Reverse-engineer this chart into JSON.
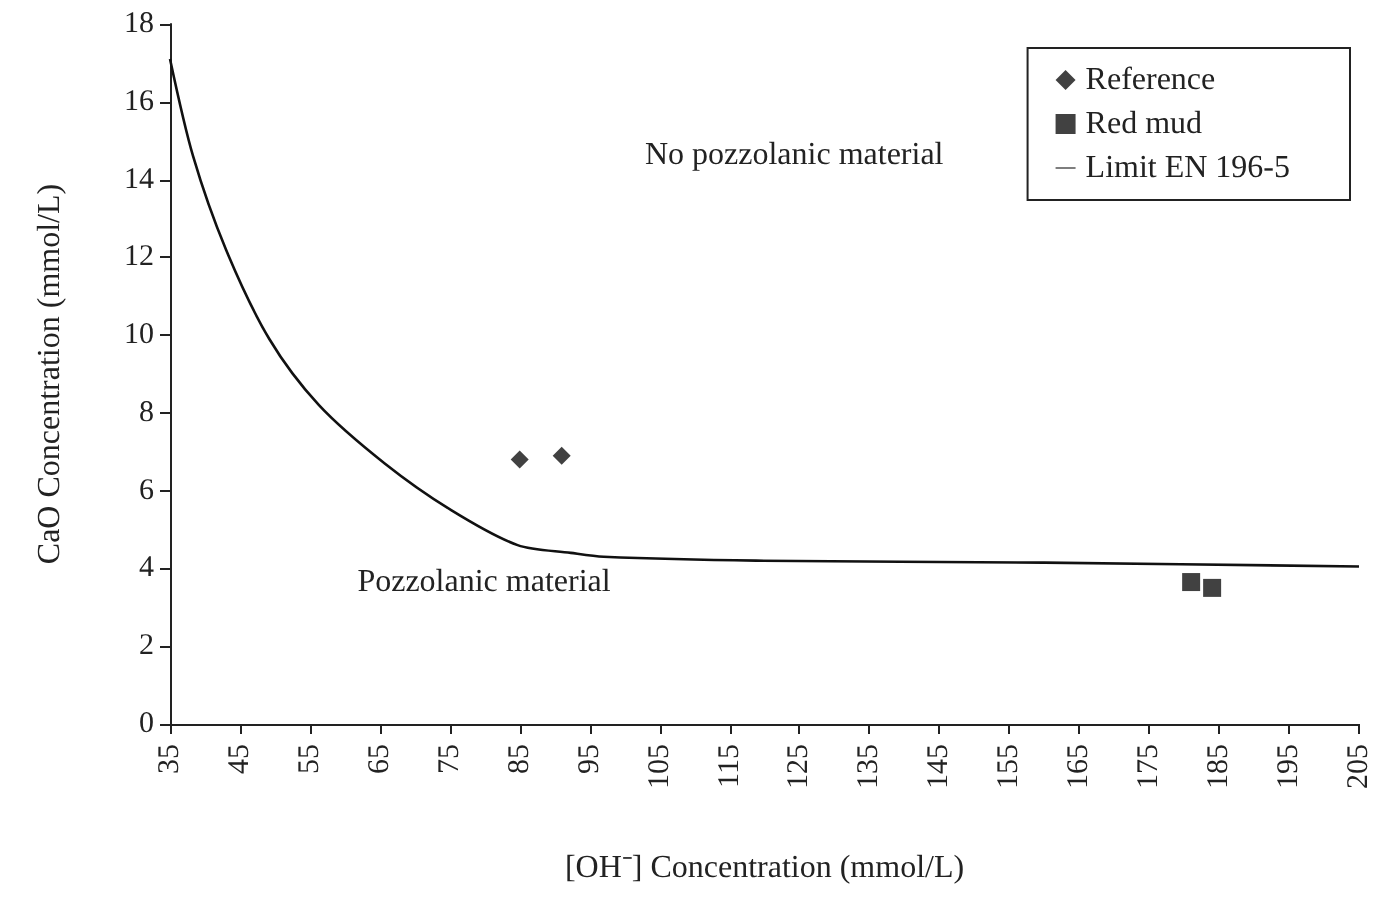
{
  "chart_data": {
    "type": "scatter",
    "xlabel": "[OH⁻] Concentration (mmol/L)",
    "ylabel": "CaO Concentration (mmol/L)",
    "xlim": [
      35,
      205
    ],
    "xticks": [
      35,
      45,
      55,
      65,
      75,
      85,
      95,
      105,
      115,
      125,
      135,
      145,
      155,
      165,
      175,
      185,
      195,
      205
    ],
    "ylim": [
      0,
      18
    ],
    "yticks": [
      0,
      2,
      4,
      6,
      8,
      10,
      12,
      14,
      16,
      18
    ],
    "grid": false,
    "legend": "top right",
    "annotations": [
      "No pozzolanic material",
      "Pozzolanic material"
    ],
    "series": [
      {
        "name": "Reference",
        "marker": "diamond",
        "color": "#111111",
        "x": [
          85,
          91
        ],
        "values": [
          6.8,
          6.9
        ]
      },
      {
        "name": "Red mud",
        "marker": "square",
        "color": "#111111",
        "x": [
          181,
          184
        ],
        "values": [
          3.65,
          3.5
        ]
      },
      {
        "name": "Limit EN 196-5",
        "type": "line",
        "marker": "none",
        "color": "#111111",
        "x": [
          35,
          38.3,
          43,
          49.2,
          56.3,
          65.7,
          75.2,
          84.7,
          92.3,
          97,
          118.8,
          160,
          205
        ],
        "values": [
          17.1,
          14.6,
          12.2,
          9.9,
          8.2,
          6.7,
          5.5,
          4.6,
          4.4,
          4.3,
          4.2,
          4.15,
          4.05
        ]
      }
    ]
  }
}
